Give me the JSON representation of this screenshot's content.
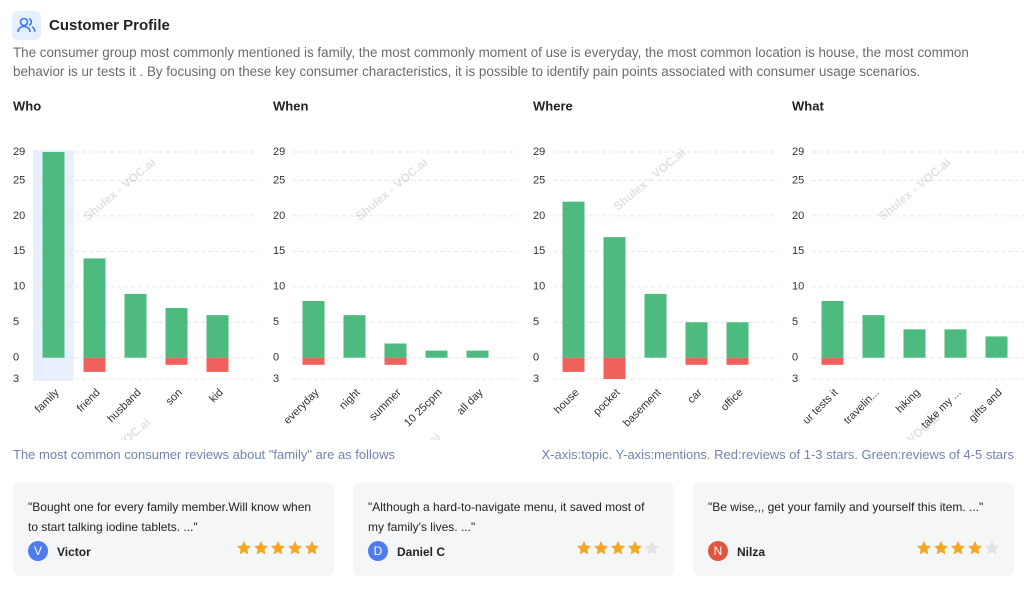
{
  "header": {
    "title": "Customer Profile",
    "description": "The consumer group most commonly mentioned is family, the most commonly moment of use is everyday, the most common location is house, the most common behavior is ur tests it . By focusing on these key consumer characteristics, it is possible to identify pain points associated with consumer usage scenarios."
  },
  "watermark": "Shulex - VOC.ai",
  "chart_data": [
    {
      "type": "bar",
      "title": "Who",
      "categories": [
        "family",
        "friend",
        "husband",
        "son",
        "kid"
      ],
      "series": [
        {
          "color": "#4dbb7f",
          "values": [
            29,
            14,
            9,
            7,
            6
          ]
        },
        {
          "color": "#f0605d",
          "values": [
            0,
            -2,
            0,
            -1,
            -2
          ]
        }
      ],
      "ylim": [
        -3,
        29
      ],
      "yticks": [
        {
          "value": -3,
          "label": "3"
        },
        0,
        5,
        10,
        15,
        20,
        25,
        29
      ],
      "grid": true,
      "highlight_index": 0
    },
    {
      "type": "bar",
      "title": "When",
      "categories": [
        "everyday",
        "night",
        "summer",
        "10 25cpm",
        "all day"
      ],
      "series": [
        {
          "color": "#4dbb7f",
          "values": [
            8,
            6,
            2,
            1,
            1
          ]
        },
        {
          "color": "#f0605d",
          "values": [
            -1,
            0,
            -1,
            0,
            0
          ]
        }
      ],
      "ylim": [
        -3,
        29
      ],
      "yticks": [
        {
          "value": -3,
          "label": "3"
        },
        0,
        5,
        10,
        15,
        20,
        25,
        29
      ],
      "grid": true
    },
    {
      "type": "bar",
      "title": "Where",
      "categories": [
        "house",
        "pocket",
        "basement",
        "car",
        "office"
      ],
      "series": [
        {
          "color": "#4dbb7f",
          "values": [
            22,
            17,
            9,
            5,
            5
          ]
        },
        {
          "color": "#f0605d",
          "values": [
            -2,
            -3,
            0,
            -1,
            -1
          ]
        }
      ],
      "ylim": [
        -3,
        29
      ],
      "yticks": [
        {
          "value": -3,
          "label": "3"
        },
        0,
        5,
        10,
        15,
        20,
        25,
        29
      ],
      "grid": true
    },
    {
      "type": "bar",
      "title": "What",
      "categories": [
        "ur tests it",
        "travelin...",
        "hiking",
        "take my ...",
        "gifts and"
      ],
      "series": [
        {
          "color": "#4dbb7f",
          "values": [
            8,
            6,
            4,
            4,
            3
          ]
        },
        {
          "color": "#f0605d",
          "values": [
            -1,
            0,
            0,
            0,
            0
          ]
        }
      ],
      "ylim": [
        -3,
        29
      ],
      "yticks": [
        {
          "value": -3,
          "label": "3"
        },
        0,
        5,
        10,
        15,
        20,
        25,
        29
      ],
      "grid": true
    }
  ],
  "reviews_intro": "The most common consumer reviews about \"family\" are as follows",
  "axis_note": "X-axis:topic. Y-axis:mentions. Red:reviews of 1-3 stars. Green:reviews of 4-5 stars",
  "reviews": [
    {
      "text": "\"Bought one for every family member.Will know when to start talking iodine tablets. ...\"",
      "initial": "V",
      "name": "Victor",
      "rating": 5,
      "avatar_color": "#4e7cf0"
    },
    {
      "text": "\"Although a hard-to-navigate menu, it saved most of my family's lives. ...\"",
      "initial": "D",
      "name": "Daniel C",
      "rating": 4,
      "avatar_color": "#4e7cf0"
    },
    {
      "text": "\"Be wise,,, get your family and yourself this item. ...\"",
      "initial": "N",
      "name": "Nilza",
      "rating": 4,
      "avatar_color": "#e0553d"
    }
  ]
}
